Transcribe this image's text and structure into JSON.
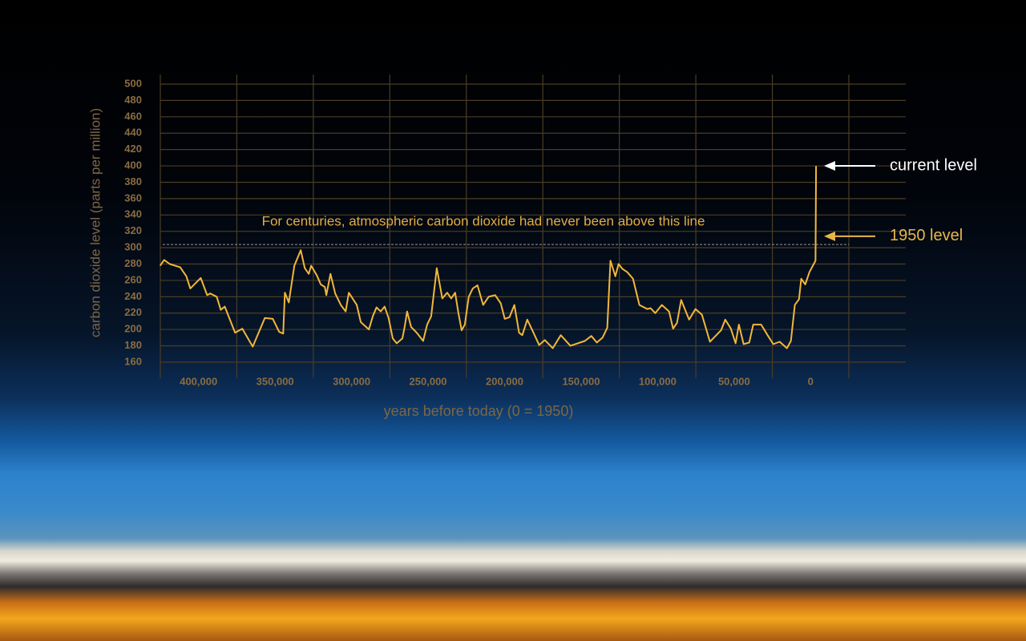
{
  "chart_data": {
    "type": "line",
    "xlabel": "years before today (0 = 1950)",
    "ylabel": "carbon dioxide level (parts per million)",
    "x": [
      425100,
      422500,
      418800,
      412000,
      408000,
      405400,
      398600,
      394400,
      392300,
      388100,
      385500,
      382900,
      376100,
      371400,
      364600,
      356700,
      351500,
      347300,
      344700,
      343600,
      341000,
      337400,
      333200,
      330600,
      328000,
      326400,
      322700,
      320100,
      317500,
      316500,
      313800,
      310700,
      307000,
      303900,
      301800,
      296600,
      294000,
      288700,
      286100,
      283700,
      281000,
      278400,
      275800,
      273100,
      270500,
      266800,
      265300,
      263700,
      261100,
      257400,
      253200,
      250600,
      248000,
      244300,
      240700,
      237500,
      234900,
      232300,
      230200,
      228100,
      226000,
      223400,
      220800,
      217700,
      214000,
      210400,
      206200,
      202500,
      199900,
      196800,
      193600,
      190500,
      188400,
      185200,
      181600,
      177400,
      173700,
      168500,
      163300,
      157000,
      147500,
      143300,
      139700,
      136000,
      132900,
      130800,
      127600,
      125500,
      122900,
      119800,
      116100,
      111900,
      106700,
      104600,
      101500,
      97200,
      92500,
      89900,
      87300,
      84600,
      79400,
      75200,
      71000,
      65800,
      58500,
      55800,
      52100,
      49000,
      46900,
      43800,
      40100,
      37500,
      32300,
      28100,
      24400,
      20200,
      15500,
      12900,
      10300,
      7600,
      6100,
      3500,
      800,
      -3200,
      -3600
    ],
    "values": [
      278,
      285,
      280,
      276,
      265,
      250,
      263,
      242,
      244,
      240,
      224,
      228,
      196,
      201,
      179,
      214,
      213,
      197,
      195,
      245,
      233,
      278,
      297,
      275,
      268,
      278,
      266,
      255,
      252,
      242,
      268,
      244,
      230,
      222,
      245,
      230,
      209,
      200,
      216,
      227,
      222,
      228,
      214,
      189,
      183,
      189,
      203,
      222,
      203,
      196,
      186,
      206,
      216,
      275,
      238,
      245,
      238,
      245,
      220,
      199,
      206,
      240,
      250,
      254,
      230,
      240,
      242,
      232,
      213,
      215,
      230,
      196,
      193,
      212,
      198,
      181,
      187,
      177,
      193,
      180,
      186,
      192,
      184,
      190,
      202,
      284,
      265,
      280,
      274,
      270,
      262,
      230,
      225,
      226,
      220,
      230,
      222,
      201,
      208,
      236,
      212,
      225,
      218,
      185,
      199,
      212,
      201,
      183,
      206,
      182,
      184,
      206,
      206,
      193,
      182,
      185,
      177,
      186,
      230,
      237,
      262,
      255,
      270,
      284,
      400
    ],
    "color": "#f2b73a",
    "xlim": [
      425000,
      -25000
    ],
    "ylim": [
      160,
      500
    ],
    "xticks": [
      {
        "value": 400000,
        "label": "400,000"
      },
      {
        "value": 350000,
        "label": "350,000"
      },
      {
        "value": 300000,
        "label": "300,000"
      },
      {
        "value": 250000,
        "label": "250,000"
      },
      {
        "value": 200000,
        "label": "200,000"
      },
      {
        "value": 150000,
        "label": "150,000"
      },
      {
        "value": 100000,
        "label": "100,000"
      },
      {
        "value": 50000,
        "label": "50,000"
      },
      0
    ],
    "yticks": [
      160,
      180,
      200,
      220,
      240,
      260,
      280,
      300,
      320,
      340,
      360,
      380,
      400,
      420,
      440,
      460,
      480,
      500
    ],
    "grid": true,
    "reference_line": {
      "value": 300,
      "label": "For centuries, atmospheric carbon dioxide had never been above this line"
    },
    "annotations": [
      {
        "text": "current level",
        "value": 400,
        "color": "#ffffff"
      },
      {
        "text": "1950 level",
        "value": 314,
        "color": "#e9b54a"
      }
    ]
  }
}
